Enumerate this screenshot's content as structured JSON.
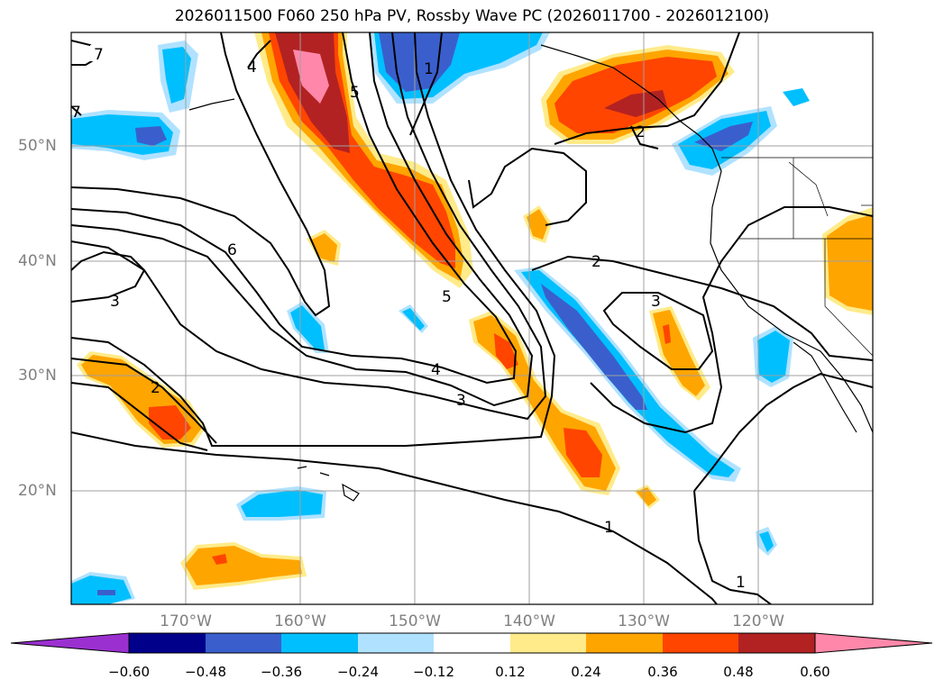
{
  "title": "2026011500 F060 250 hPa PV, Rossby Wave PC (2026011700 - 2026012100)",
  "lat_labels": [
    "50°N",
    "40°N",
    "30°N",
    "20°N"
  ],
  "lon_labels": [
    "170°W",
    "160°W",
    "150°W",
    "140°W",
    "130°W",
    "120°W"
  ],
  "colorbar": {
    "ticks": [
      "−0.60",
      "−0.48",
      "−0.36",
      "−0.24",
      "−0.12",
      "0.12",
      "0.24",
      "0.36",
      "0.48",
      "0.60"
    ],
    "colors": [
      "#9b30d0",
      "#00008b",
      "#3a5fcd",
      "#00bfff",
      "#b0e2ff",
      "#ffffff",
      "#ffeb8a",
      "#ffa500",
      "#ff4500",
      "#b22222",
      "#ff88aa"
    ]
  },
  "contour_labels": [
    "7",
    "7",
    "4",
    "5",
    "1",
    "6",
    "3",
    "2",
    "2",
    "2",
    "3",
    "5",
    "4",
    "3",
    "1",
    "1"
  ],
  "icons": {
    "coastline": "coastline-shape",
    "boundary": "state-boundary-shape"
  }
}
